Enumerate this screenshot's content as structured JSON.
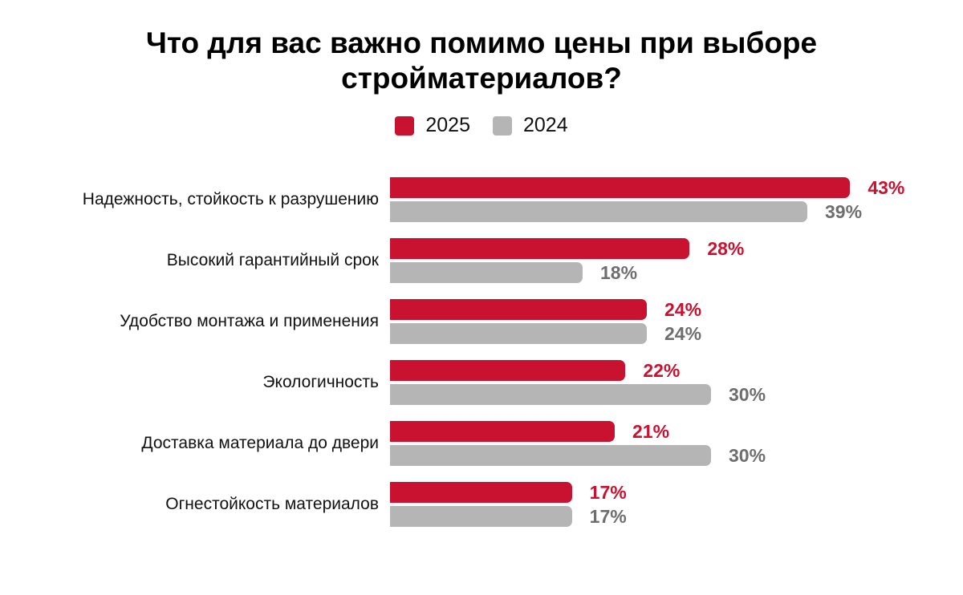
{
  "chart_data": {
    "type": "bar",
    "orientation": "horizontal",
    "title": "Что для вас важно помимо цены при выборе стройматериалов?",
    "categories": [
      "Надежность, стойкость к разрушению",
      "Высокий гарантийный срок",
      "Удобство монтажа и применения",
      "Экологичность",
      "Доставка материала до двери",
      "Огнестойкость материалов"
    ],
    "series": [
      {
        "name": "2025",
        "color": "#C9122F",
        "label_color": "#C9122F",
        "values": [
          43,
          28,
          24,
          22,
          21,
          17
        ]
      },
      {
        "name": "2024",
        "color": "#B5B5B5",
        "label_color": "#6E6E6E",
        "values": [
          39,
          18,
          24,
          30,
          30,
          17
        ]
      }
    ],
    "value_suffix": "%",
    "xlim": [
      0,
      45
    ],
    "grid": false,
    "legend_position": "top",
    "background": "#FFFFFF"
  }
}
